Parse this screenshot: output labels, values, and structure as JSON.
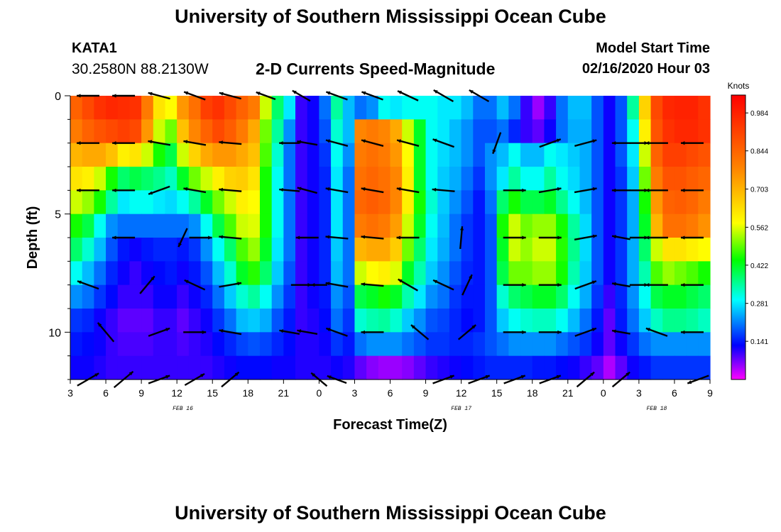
{
  "header": {
    "title": "University of Southern Mississippi Ocean Cube",
    "station_id": "KATA1",
    "station_coords": "30.2580N 88.2130W",
    "subtitle": "2-D Currents Speed-Magnitude",
    "model_start_label": "Model Start Time",
    "model_start_time": "02/16/2020 Hour 03"
  },
  "footer": {
    "title": "University of Southern Mississippi Ocean Cube"
  },
  "chart_data": {
    "type": "heatmap",
    "title": "2-D Currents Speed-Magnitude",
    "xlabel": "Forecast Time(Z)",
    "ylabel": "Depth (ft)",
    "x_unit": "hours since 02/16/2020 03Z",
    "xlim": [
      0,
      54
    ],
    "ylim": [
      0,
      12
    ],
    "x_ticks": [
      {
        "h": 0,
        "label": "3"
      },
      {
        "h": 3,
        "label": "6"
      },
      {
        "h": 6,
        "label": "9"
      },
      {
        "h": 9,
        "label": "12"
      },
      {
        "h": 12,
        "label": "15"
      },
      {
        "h": 15,
        "label": "18"
      },
      {
        "h": 18,
        "label": "21"
      },
      {
        "h": 21,
        "label": "0"
      },
      {
        "h": 24,
        "label": "3"
      },
      {
        "h": 27,
        "label": "6"
      },
      {
        "h": 30,
        "label": "9"
      },
      {
        "h": 33,
        "label": "12"
      },
      {
        "h": 36,
        "label": "15"
      },
      {
        "h": 39,
        "label": "18"
      },
      {
        "h": 42,
        "label": "21"
      },
      {
        "h": 45,
        "label": "0"
      },
      {
        "h": 48,
        "label": "3"
      },
      {
        "h": 51,
        "label": "6"
      },
      {
        "h": 54,
        "label": "9"
      }
    ],
    "date_labels": [
      {
        "h": 9.5,
        "label": "FEB 16"
      },
      {
        "h": 33.0,
        "label": "FEB 17"
      },
      {
        "h": 49.5,
        "label": "FEB 18"
      }
    ],
    "y_ticks": [
      {
        "d": 0,
        "label": "0"
      },
      {
        "d": 5,
        "label": "5"
      },
      {
        "d": 10,
        "label": "10"
      }
    ],
    "colorbar": {
      "label": "Knots",
      "min": 0.0,
      "max": 1.05,
      "ticks": [
        0.984,
        0.844,
        0.703,
        0.562,
        0.422,
        0.281,
        0.141
      ],
      "tick_labels": [
        "0.984",
        "0.844",
        "0.703",
        "0.562",
        "0.422",
        "0.281",
        "0.141"
      ]
    },
    "grid_columns_hours": 54,
    "grid_rows_depth_bins": 12,
    "speed_grid": [
      [
        0.85,
        0.9,
        0.95,
        0.97,
        0.96,
        0.95,
        0.8,
        0.62,
        0.58,
        0.75,
        0.82,
        0.92,
        0.95,
        0.9,
        0.85,
        0.8,
        0.55,
        0.38,
        0.28,
        0.1,
        0.12,
        0.2,
        0.35,
        0.25,
        0.2,
        0.22,
        0.3,
        0.28,
        0.3,
        0.3,
        0.3,
        0.28,
        0.28,
        0.25,
        0.2,
        0.2,
        0.25,
        0.2,
        0.1,
        0.05,
        0.1,
        0.2,
        0.25,
        0.25,
        0.18,
        0.12,
        0.18,
        0.35,
        0.65,
        0.9,
        0.97,
        0.98,
        0.98,
        0.95
      ],
      [
        0.8,
        0.85,
        0.88,
        0.9,
        0.92,
        0.9,
        0.75,
        0.55,
        0.5,
        0.68,
        0.78,
        0.85,
        0.9,
        0.86,
        0.8,
        0.72,
        0.5,
        0.35,
        0.22,
        0.1,
        0.12,
        0.18,
        0.32,
        0.25,
        0.78,
        0.8,
        0.78,
        0.72,
        0.55,
        0.42,
        0.3,
        0.28,
        0.25,
        0.22,
        0.18,
        0.18,
        0.2,
        0.15,
        0.1,
        0.08,
        0.12,
        0.2,
        0.24,
        0.24,
        0.18,
        0.12,
        0.18,
        0.3,
        0.6,
        0.88,
        0.95,
        0.97,
        0.97,
        0.95
      ],
      [
        0.7,
        0.72,
        0.72,
        0.68,
        0.6,
        0.62,
        0.55,
        0.45,
        0.4,
        0.55,
        0.65,
        0.72,
        0.75,
        0.75,
        0.72,
        0.68,
        0.48,
        0.32,
        0.2,
        0.1,
        0.12,
        0.16,
        0.3,
        0.22,
        0.8,
        0.82,
        0.8,
        0.75,
        0.58,
        0.42,
        0.3,
        0.27,
        0.25,
        0.22,
        0.18,
        0.22,
        0.25,
        0.3,
        0.25,
        0.25,
        0.3,
        0.28,
        0.26,
        0.24,
        0.18,
        0.12,
        0.18,
        0.28,
        0.55,
        0.85,
        0.92,
        0.92,
        0.9,
        0.88
      ],
      [
        0.62,
        0.6,
        0.55,
        0.45,
        0.38,
        0.4,
        0.38,
        0.36,
        0.33,
        0.42,
        0.5,
        0.55,
        0.6,
        0.65,
        0.66,
        0.62,
        0.45,
        0.3,
        0.2,
        0.1,
        0.12,
        0.15,
        0.28,
        0.2,
        0.82,
        0.84,
        0.82,
        0.78,
        0.6,
        0.42,
        0.3,
        0.26,
        0.24,
        0.2,
        0.16,
        0.22,
        0.28,
        0.35,
        0.3,
        0.3,
        0.35,
        0.3,
        0.27,
        0.24,
        0.18,
        0.12,
        0.16,
        0.26,
        0.5,
        0.8,
        0.88,
        0.88,
        0.86,
        0.84
      ],
      [
        0.55,
        0.52,
        0.45,
        0.35,
        0.28,
        0.3,
        0.3,
        0.28,
        0.27,
        0.3,
        0.35,
        0.42,
        0.5,
        0.55,
        0.6,
        0.58,
        0.45,
        0.3,
        0.2,
        0.1,
        0.12,
        0.15,
        0.28,
        0.2,
        0.84,
        0.86,
        0.84,
        0.78,
        0.6,
        0.45,
        0.32,
        0.26,
        0.22,
        0.18,
        0.14,
        0.2,
        0.38,
        0.45,
        0.4,
        0.4,
        0.42,
        0.36,
        0.3,
        0.25,
        0.18,
        0.12,
        0.16,
        0.24,
        0.45,
        0.75,
        0.85,
        0.86,
        0.84,
        0.8
      ],
      [
        0.45,
        0.4,
        0.3,
        0.22,
        0.2,
        0.2,
        0.2,
        0.2,
        0.2,
        0.2,
        0.22,
        0.3,
        0.4,
        0.48,
        0.55,
        0.56,
        0.45,
        0.3,
        0.2,
        0.1,
        0.12,
        0.15,
        0.28,
        0.2,
        0.8,
        0.82,
        0.8,
        0.74,
        0.55,
        0.42,
        0.3,
        0.25,
        0.2,
        0.16,
        0.14,
        0.18,
        0.45,
        0.55,
        0.5,
        0.52,
        0.52,
        0.45,
        0.35,
        0.27,
        0.18,
        0.12,
        0.16,
        0.24,
        0.42,
        0.7,
        0.82,
        0.82,
        0.8,
        0.76
      ],
      [
        0.38,
        0.32,
        0.25,
        0.18,
        0.14,
        0.12,
        0.14,
        0.15,
        0.15,
        0.14,
        0.16,
        0.22,
        0.3,
        0.38,
        0.48,
        0.52,
        0.42,
        0.28,
        0.2,
        0.1,
        0.12,
        0.15,
        0.26,
        0.2,
        0.7,
        0.72,
        0.72,
        0.66,
        0.5,
        0.38,
        0.28,
        0.24,
        0.2,
        0.16,
        0.14,
        0.18,
        0.42,
        0.55,
        0.52,
        0.55,
        0.55,
        0.46,
        0.36,
        0.27,
        0.18,
        0.12,
        0.16,
        0.24,
        0.38,
        0.55,
        0.62,
        0.62,
        0.6,
        0.58
      ],
      [
        0.3,
        0.25,
        0.2,
        0.15,
        0.12,
        0.1,
        0.12,
        0.13,
        0.14,
        0.12,
        0.14,
        0.18,
        0.25,
        0.32,
        0.42,
        0.46,
        0.38,
        0.26,
        0.18,
        0.1,
        0.12,
        0.15,
        0.25,
        0.2,
        0.55,
        0.58,
        0.6,
        0.56,
        0.42,
        0.34,
        0.26,
        0.22,
        0.18,
        0.15,
        0.14,
        0.18,
        0.4,
        0.5,
        0.5,
        0.52,
        0.52,
        0.45,
        0.34,
        0.26,
        0.18,
        0.12,
        0.16,
        0.24,
        0.34,
        0.48,
        0.52,
        0.5,
        0.48,
        0.45
      ],
      [
        0.22,
        0.2,
        0.16,
        0.13,
        0.1,
        0.1,
        0.1,
        0.12,
        0.12,
        0.1,
        0.12,
        0.15,
        0.2,
        0.26,
        0.32,
        0.35,
        0.3,
        0.22,
        0.16,
        0.1,
        0.12,
        0.14,
        0.22,
        0.18,
        0.4,
        0.42,
        0.45,
        0.42,
        0.34,
        0.28,
        0.22,
        0.2,
        0.16,
        0.14,
        0.14,
        0.18,
        0.32,
        0.38,
        0.4,
        0.42,
        0.42,
        0.38,
        0.3,
        0.24,
        0.16,
        0.1,
        0.15,
        0.22,
        0.3,
        0.4,
        0.42,
        0.42,
        0.4,
        0.38
      ],
      [
        0.16,
        0.15,
        0.12,
        0.1,
        0.08,
        0.08,
        0.08,
        0.1,
        0.1,
        0.08,
        0.1,
        0.12,
        0.16,
        0.2,
        0.25,
        0.26,
        0.24,
        0.18,
        0.14,
        0.1,
        0.11,
        0.13,
        0.2,
        0.16,
        0.32,
        0.34,
        0.35,
        0.32,
        0.26,
        0.22,
        0.18,
        0.17,
        0.15,
        0.13,
        0.14,
        0.18,
        0.26,
        0.3,
        0.32,
        0.33,
        0.33,
        0.3,
        0.25,
        0.2,
        0.14,
        0.08,
        0.14,
        0.2,
        0.26,
        0.33,
        0.36,
        0.36,
        0.35,
        0.33
      ],
      [
        0.14,
        0.13,
        0.12,
        0.1,
        0.09,
        0.09,
        0.09,
        0.1,
        0.1,
        0.09,
        0.1,
        0.11,
        0.13,
        0.15,
        0.17,
        0.18,
        0.17,
        0.15,
        0.13,
        0.11,
        0.11,
        0.12,
        0.16,
        0.14,
        0.2,
        0.22,
        0.22,
        0.22,
        0.2,
        0.18,
        0.16,
        0.16,
        0.15,
        0.15,
        0.16,
        0.18,
        0.2,
        0.22,
        0.22,
        0.22,
        0.22,
        0.2,
        0.18,
        0.16,
        0.12,
        0.08,
        0.12,
        0.16,
        0.2,
        0.22,
        0.22,
        0.22,
        0.22,
        0.22
      ],
      [
        0.12,
        0.12,
        0.11,
        0.1,
        0.1,
        0.1,
        0.1,
        0.1,
        0.1,
        0.1,
        0.1,
        0.1,
        0.11,
        0.12,
        0.13,
        0.13,
        0.13,
        0.12,
        0.12,
        0.11,
        0.11,
        0.11,
        0.12,
        0.11,
        0.08,
        0.06,
        0.05,
        0.05,
        0.06,
        0.08,
        0.1,
        0.11,
        0.12,
        0.13,
        0.14,
        0.15,
        0.15,
        0.15,
        0.15,
        0.14,
        0.14,
        0.13,
        0.12,
        0.1,
        0.08,
        0.04,
        0.08,
        0.12,
        0.14,
        0.16,
        0.16,
        0.16,
        0.16,
        0.16
      ]
    ],
    "vectors_note": "arrows: [hour, depth_ft, direction_deg_math, relative_speed]",
    "vectors": [
      [
        1.5,
        0,
        180,
        0.6
      ],
      [
        4.5,
        0,
        180,
        0.6
      ],
      [
        7.5,
        0,
        165,
        0.6
      ],
      [
        10.5,
        0,
        160,
        0.6
      ],
      [
        13.5,
        0,
        165,
        0.6
      ],
      [
        16.5,
        0,
        160,
        0.5
      ],
      [
        19.5,
        0,
        150,
        0.5
      ],
      [
        22.5,
        0,
        160,
        0.6
      ],
      [
        25.5,
        0,
        160,
        0.6
      ],
      [
        28.5,
        0,
        155,
        0.6
      ],
      [
        31.5,
        0,
        150,
        0.6
      ],
      [
        34.5,
        0,
        150,
        0.6
      ],
      [
        1.5,
        2,
        180,
        0.6
      ],
      [
        4.5,
        2,
        180,
        0.6
      ],
      [
        7.5,
        2,
        170,
        0.6
      ],
      [
        10.5,
        2,
        170,
        0.6
      ],
      [
        13.5,
        2,
        175,
        0.6
      ],
      [
        18.5,
        2,
        180,
        0.5
      ],
      [
        20,
        2,
        170,
        0.5
      ],
      [
        22.5,
        2,
        165,
        0.6
      ],
      [
        25.5,
        2,
        165,
        0.6
      ],
      [
        28.5,
        2,
        165,
        0.6
      ],
      [
        31.5,
        2,
        160,
        0.6
      ],
      [
        36,
        2,
        250,
        0.6
      ],
      [
        40.5,
        2,
        20,
        0.6
      ],
      [
        43.5,
        2,
        15,
        0.6
      ],
      [
        46.5,
        2,
        180,
        0.4
      ],
      [
        48,
        2,
        0,
        0.4
      ],
      [
        49.5,
        2,
        180,
        0.6
      ],
      [
        52.5,
        2,
        180,
        0.6
      ],
      [
        1.5,
        4,
        180,
        0.6
      ],
      [
        4.5,
        4,
        180,
        0.6
      ],
      [
        7.5,
        4,
        200,
        0.6
      ],
      [
        10.5,
        4,
        170,
        0.6
      ],
      [
        13.5,
        4,
        175,
        0.6
      ],
      [
        18.5,
        4,
        175,
        0.5
      ],
      [
        20,
        4,
        165,
        0.5
      ],
      [
        22.5,
        4,
        170,
        0.6
      ],
      [
        25.5,
        4,
        170,
        0.6
      ],
      [
        28.5,
        4,
        170,
        0.6
      ],
      [
        31.5,
        4,
        175,
        0.6
      ],
      [
        37.5,
        4,
        0,
        0.6
      ],
      [
        40.5,
        4,
        10,
        0.6
      ],
      [
        43.5,
        4,
        10,
        0.6
      ],
      [
        46.5,
        4,
        180,
        0.4
      ],
      [
        48,
        4,
        0,
        0.4
      ],
      [
        49.5,
        4,
        180,
        0.6
      ],
      [
        52.5,
        4,
        180,
        0.6
      ],
      [
        4.5,
        6,
        180,
        0.6
      ],
      [
        9.5,
        6,
        245,
        0.5
      ],
      [
        11,
        6,
        0,
        0.6
      ],
      [
        13.5,
        6,
        175,
        0.6
      ],
      [
        20,
        6,
        180,
        0.6
      ],
      [
        22.5,
        6,
        175,
        0.6
      ],
      [
        25.5,
        6,
        175,
        0.6
      ],
      [
        28.5,
        6,
        180,
        0.6
      ],
      [
        33,
        6,
        85,
        0.6
      ],
      [
        37.5,
        6,
        0,
        0.6
      ],
      [
        40.5,
        6,
        0,
        0.6
      ],
      [
        43.5,
        6,
        10,
        0.6
      ],
      [
        46.5,
        6,
        170,
        0.4
      ],
      [
        48,
        6,
        0,
        0.4
      ],
      [
        49.5,
        6,
        180,
        0.6
      ],
      [
        52.5,
        6,
        180,
        0.6
      ],
      [
        1.5,
        8,
        160,
        0.6
      ],
      [
        6.5,
        8,
        50,
        0.6
      ],
      [
        10.5,
        8,
        155,
        0.6
      ],
      [
        13.5,
        8,
        10,
        0.6
      ],
      [
        19.5,
        8,
        0,
        0.5
      ],
      [
        21,
        8,
        180,
        0.3
      ],
      [
        22.5,
        8,
        170,
        0.6
      ],
      [
        25.5,
        8,
        175,
        0.6
      ],
      [
        28.5,
        8,
        150,
        0.6
      ],
      [
        31.5,
        8,
        155,
        0.6
      ],
      [
        33.5,
        8,
        65,
        0.6
      ],
      [
        37.5,
        8,
        0,
        0.6
      ],
      [
        40.5,
        8,
        0,
        0.6
      ],
      [
        43.5,
        8,
        20,
        0.6
      ],
      [
        46.5,
        8,
        170,
        0.4
      ],
      [
        48,
        8,
        0,
        0.4
      ],
      [
        49.5,
        8,
        180,
        0.6
      ],
      [
        52.5,
        8,
        180,
        0.6
      ],
      [
        3,
        10,
        130,
        0.7
      ],
      [
        7.5,
        10,
        20,
        0.6
      ],
      [
        10.5,
        10,
        0,
        0.6
      ],
      [
        13.5,
        10,
        170,
        0.6
      ],
      [
        18.5,
        10,
        170,
        0.5
      ],
      [
        20,
        10,
        170,
        0.5
      ],
      [
        22.5,
        10,
        160,
        0.6
      ],
      [
        25.5,
        10,
        180,
        0.6
      ],
      [
        29.5,
        10,
        140,
        0.6
      ],
      [
        33.5,
        10,
        40,
        0.6
      ],
      [
        37.5,
        10,
        0,
        0.6
      ],
      [
        40.5,
        10,
        0,
        0.6
      ],
      [
        43.5,
        10,
        20,
        0.6
      ],
      [
        46.5,
        10,
        170,
        0.4
      ],
      [
        49.5,
        10,
        160,
        0.6
      ],
      [
        52.5,
        10,
        180,
        0.6
      ],
      [
        1.5,
        12,
        30,
        0.7
      ],
      [
        4.5,
        12,
        40,
        0.7
      ],
      [
        7.5,
        12,
        20,
        0.6
      ],
      [
        10.5,
        12,
        30,
        0.6
      ],
      [
        13.5,
        12,
        40,
        0.6
      ],
      [
        21,
        12,
        140,
        0.5
      ],
      [
        22.5,
        12,
        160,
        0.5
      ],
      [
        31.5,
        12,
        20,
        0.6
      ],
      [
        34.5,
        12,
        20,
        0.6
      ],
      [
        37.5,
        12,
        20,
        0.6
      ],
      [
        40.5,
        12,
        20,
        0.6
      ],
      [
        43.5,
        12,
        40,
        0.6
      ],
      [
        46.5,
        12,
        40,
        0.6
      ],
      [
        53,
        12,
        200,
        0.6
      ]
    ]
  }
}
